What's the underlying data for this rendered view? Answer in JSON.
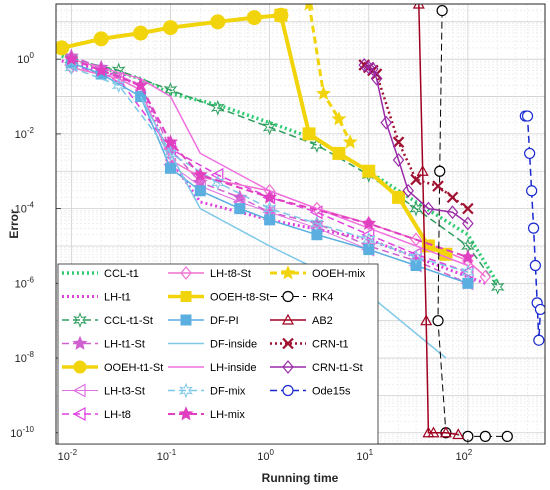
{
  "chart_data": {
    "type": "line",
    "title": "",
    "xlabel": "Running time",
    "ylabel": "Error",
    "xscale": "log",
    "yscale": "log",
    "xlim": [
      0.007,
      600
    ],
    "ylim": [
      5e-11,
      30
    ],
    "grid": "on (major and minor)",
    "legend_position": "bottom-left (inside, 3 columns)",
    "x_ticks": [
      {
        "value": 0.01,
        "label": "10",
        "exp": "-2"
      },
      {
        "value": 0.1,
        "label": "10",
        "exp": "-1"
      },
      {
        "value": 1,
        "label": "10",
        "exp": "0"
      },
      {
        "value": 10,
        "label": "10",
        "exp": "1"
      },
      {
        "value": 100,
        "label": "10",
        "exp": "2"
      }
    ],
    "y_ticks": [
      {
        "value": 1e-10,
        "label": "10",
        "exp": "-10"
      },
      {
        "value": 1e-08,
        "label": "10",
        "exp": "-8"
      },
      {
        "value": 1e-06,
        "label": "10",
        "exp": "-6"
      },
      {
        "value": 0.0001,
        "label": "10",
        "exp": "-4"
      },
      {
        "value": 0.01,
        "label": "10",
        "exp": "-2"
      },
      {
        "value": 1,
        "label": "10",
        "exp": "0"
      }
    ],
    "series": [
      {
        "name": "CCL-t1",
        "color": "#2ecc71",
        "dash": "dot",
        "width": 3.5,
        "marker": "none",
        "x": [
          0.008,
          0.02,
          0.05,
          0.1,
          0.3,
          1,
          3,
          10,
          30,
          100,
          200
        ],
        "y": [
          1.2,
          0.6,
          0.3,
          0.12,
          0.06,
          0.02,
          0.007,
          0.001,
          0.00015,
          2e-05,
          1e-06
        ]
      },
      {
        "name": "LH-t1",
        "color": "#e040e0",
        "dash": "dot",
        "width": 3,
        "marker": "none",
        "x": [
          0.008,
          0.02,
          0.05,
          0.1,
          0.2,
          1,
          10,
          150
        ],
        "y": [
          0.9,
          0.5,
          0.2,
          0.002,
          0.00015,
          5e-05,
          1.5e-05,
          1e-06
        ]
      },
      {
        "name": "CCL-t1-St",
        "color": "#2e9e5e",
        "dash": "dash",
        "width": 1.5,
        "marker": "star6",
        "x": [
          0.01,
          0.03,
          0.1,
          0.3,
          1,
          3,
          10,
          30,
          100,
          200
        ],
        "y": [
          1.0,
          0.5,
          0.15,
          0.05,
          0.015,
          0.005,
          0.0008,
          0.0001,
          1e-05,
          8e-07
        ]
      },
      {
        "name": "LH-t1-St",
        "color": "#d060d0",
        "dash": "dash",
        "width": 1.5,
        "marker": "star5",
        "x": [
          0.01,
          0.02,
          0.05,
          0.1,
          0.2,
          0.5,
          1,
          3,
          10,
          30,
          100
        ],
        "y": [
          1.2,
          0.6,
          0.2,
          0.004,
          0.0005,
          0.0002,
          8e-05,
          4e-05,
          1e-05,
          4e-06,
          1e-06
        ]
      },
      {
        "name": "OOEH-t1-St",
        "color": "#f2d40c",
        "dash": "solid",
        "width": 4,
        "marker": "circle",
        "x": [
          0.008,
          0.02,
          0.05,
          0.1,
          0.3,
          0.7,
          1.3
        ],
        "y": [
          2,
          3.5,
          5,
          7,
          10,
          13,
          15
        ]
      },
      {
        "name": "LH-t3-St",
        "color": "#e070e0",
        "dash": "solid",
        "width": 1,
        "marker": "tri-left",
        "x": [
          0.1,
          0.2,
          0.5,
          1,
          3,
          10,
          30,
          100
        ],
        "y": [
          0.0015,
          0.0004,
          0.00015,
          8e-05,
          3e-05,
          8e-06,
          3e-06,
          1e-06
        ]
      },
      {
        "name": "LH-t8",
        "color": "#e040e0",
        "dash": "dash",
        "width": 1.5,
        "marker": "tri-left",
        "x": [
          0.01,
          0.03,
          0.1,
          0.3,
          1,
          3,
          10,
          30,
          100
        ],
        "y": [
          0.7,
          0.3,
          0.004,
          0.0008,
          0.0002,
          8e-05,
          2e-05,
          6e-06,
          2e-06
        ]
      },
      {
        "name": "LH-t8-St",
        "color": "#f070d0",
        "dash": "solid",
        "width": 1.5,
        "marker": "diamond",
        "x": [
          0.01,
          0.03,
          0.05,
          0.1,
          0.2,
          1,
          3,
          10,
          30,
          100,
          150
        ],
        "y": [
          0.6,
          0.3,
          0.15,
          0.002,
          0.0007,
          0.0003,
          0.0001,
          4e-05,
          1.5e-05,
          4e-06,
          1.5e-06
        ]
      },
      {
        "name": "OOEH-t8-St",
        "color": "#f2d40c",
        "dash": "solid",
        "width": 4,
        "marker": "square",
        "x": [
          1.3,
          2.5,
          5,
          10,
          20,
          40,
          60
        ],
        "y": [
          15,
          0.01,
          0.003,
          0.001,
          0.0002,
          1e-05,
          6e-06
        ]
      },
      {
        "name": "DF-PI",
        "color": "#5aaee0",
        "dash": "solid",
        "width": 1.5,
        "marker": "square",
        "x": [
          0.01,
          0.02,
          0.05,
          0.1,
          0.2,
          0.5,
          1,
          3,
          10,
          30,
          100
        ],
        "y": [
          0.8,
          0.4,
          0.1,
          0.0012,
          0.0003,
          0.0001,
          5e-05,
          2e-05,
          8e-06,
          3e-06,
          1e-06
        ]
      },
      {
        "name": "DF-inside",
        "color": "#7ec8e8",
        "dash": "solid",
        "width": 1.5,
        "marker": "none",
        "x": [
          0.05,
          0.1,
          0.2,
          1,
          10,
          60
        ],
        "y": [
          0.1,
          0.003,
          0.0001,
          1e-05,
          5e-07,
          1e-08
        ]
      },
      {
        "name": "LH-inside",
        "color": "#f070e0",
        "dash": "solid",
        "width": 1.5,
        "marker": "none",
        "x": [
          0.01,
          0.05,
          0.1,
          0.2,
          1,
          10,
          100
        ],
        "y": [
          1.0,
          0.3,
          0.1,
          0.003,
          0.0003,
          3e-05,
          3e-06
        ]
      },
      {
        "name": "DF-mix",
        "color": "#7ec8e8",
        "dash": "dash",
        "width": 1.5,
        "marker": "star6",
        "x": [
          0.01,
          0.03,
          0.1,
          0.3,
          1,
          3,
          10,
          30,
          100
        ],
        "y": [
          0.6,
          0.2,
          0.003,
          0.0005,
          0.0001,
          4e-05,
          1.5e-05,
          5e-06,
          2e-06
        ]
      },
      {
        "name": "LH-mix",
        "color": "#e040c0",
        "dash": "dash",
        "width": 2,
        "marker": "star5",
        "x": [
          0.01,
          0.02,
          0.05,
          0.1,
          0.2,
          1,
          10,
          100
        ],
        "y": [
          1.0,
          0.5,
          0.2,
          0.006,
          0.0008,
          0.0002,
          4e-05,
          5e-06
        ]
      },
      {
        "name": "OOEH-mix",
        "color": "#f2d40c",
        "dash": "dash",
        "width": 3,
        "marker": "star5",
        "x": [
          2.5,
          3.5,
          5,
          6.5
        ],
        "y": [
          30,
          0.12,
          0.025,
          0.006
        ]
      },
      {
        "name": "RK4",
        "color": "#000000",
        "dash": "dash",
        "width": 1,
        "marker": "circle-open",
        "x": [
          55,
          52,
          50,
          60,
          100,
          150,
          250
        ],
        "y": [
          20,
          0.001,
          1e-07,
          1e-10,
          8e-11,
          8e-11,
          8e-11
        ]
      },
      {
        "name": "AB2",
        "color": "#a00020",
        "dash": "solid",
        "width": 1.5,
        "marker": "tri-up",
        "x": [
          32,
          35,
          38,
          40,
          45,
          60,
          80
        ],
        "y": [
          30,
          0.001,
          1e-07,
          1e-10,
          1e-10,
          1e-10,
          9e-11
        ]
      },
      {
        "name": "CRN-t1",
        "color": "#a01030",
        "dash": "dot",
        "width": 2.5,
        "marker": "x",
        "x": [
          9,
          10,
          11,
          12,
          20,
          30,
          50,
          70,
          100
        ],
        "y": [
          0.7,
          0.6,
          0.5,
          0.4,
          0.006,
          0.0006,
          0.0004,
          0.0002,
          0.0001
        ]
      },
      {
        "name": "CRN-t1-St",
        "color": "#9a2aa8",
        "dash": "solid",
        "width": 1.5,
        "marker": "diamond",
        "x": [
          9,
          10,
          11,
          12,
          15,
          20,
          25,
          40,
          70,
          100
        ],
        "y": [
          0.7,
          0.6,
          0.55,
          0.3,
          0.02,
          0.002,
          0.0003,
          0.0001,
          8e-05,
          4e-05
        ]
      },
      {
        "name": "Ode15s",
        "color": "#1a2ad0",
        "dash": "dash",
        "width": 1.5,
        "marker": "circle-open",
        "x": [
          380,
          400,
          420,
          440,
          460,
          480,
          500,
          520,
          540
        ],
        "y": [
          0.03,
          0.03,
          0.003,
          0.0003,
          3e-05,
          3e-06,
          3e-07,
          3e-08,
          2e-07
        ]
      }
    ]
  }
}
